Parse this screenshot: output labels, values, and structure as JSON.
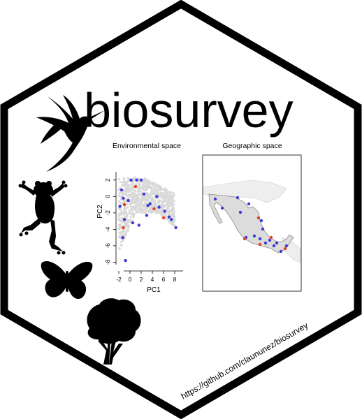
{
  "title": "biosurvey",
  "url": "https://github.com/claununez/biosurvey",
  "colors": {
    "hex_border": "#000000",
    "background": "#ffffff",
    "cloud": "#d9d9d9",
    "point_blue": "#3b3bd6",
    "point_red": "#e2431e",
    "map_land": "#dcdcdc",
    "map_bg": "#f2f2f2"
  },
  "icons": [
    "hummingbird-icon",
    "frog-icon",
    "butterfly-icon",
    "tree-icon"
  ],
  "environmental_plot": {
    "title": "Environmental space",
    "xlabel": "PC1",
    "ylabel": "PC2",
    "x_ticks": [
      "-2",
      "0",
      "2",
      "4",
      "6",
      "8"
    ],
    "y_ticks": [
      "2",
      "0",
      "-2",
      "-4",
      "-6",
      "-8"
    ]
  },
  "geographic_plot": {
    "title": "Geographic space"
  },
  "chart_data": {
    "type": "scatter",
    "xlabel": "PC1",
    "ylabel": "PC2",
    "xlim": [
      -2.5,
      9.5
    ],
    "ylim": [
      -8.3,
      3
    ],
    "series": [
      {
        "color": "#3b3bd6",
        "x": [
          -1.5,
          -1.2,
          -1.8,
          0.2,
          1.2,
          2.0,
          2.5,
          3.2,
          3.6,
          4.8,
          5.2,
          6.2,
          7.0,
          7.4,
          8.2,
          -1.0,
          -1.3,
          0.5,
          -0.8,
          1.6,
          3.0,
          -0.3
        ],
        "y": [
          0.8,
          -0.2,
          -1.2,
          2.0,
          2.0,
          2.0,
          0.3,
          -1.1,
          -0.9,
          0.0,
          -1.3,
          -1.8,
          -2.5,
          -2.8,
          -3.8,
          -2.8,
          -5.0,
          -3.2,
          -7.8,
          -3.5,
          -2.3,
          -0.5
        ]
      },
      {
        "color": "#e2431e",
        "x": [
          -1.0,
          1.0,
          4.3,
          6.0,
          -1.2
        ],
        "y": [
          -1.0,
          1.2,
          -1.5,
          -2.6,
          -3.8
        ]
      }
    ]
  }
}
